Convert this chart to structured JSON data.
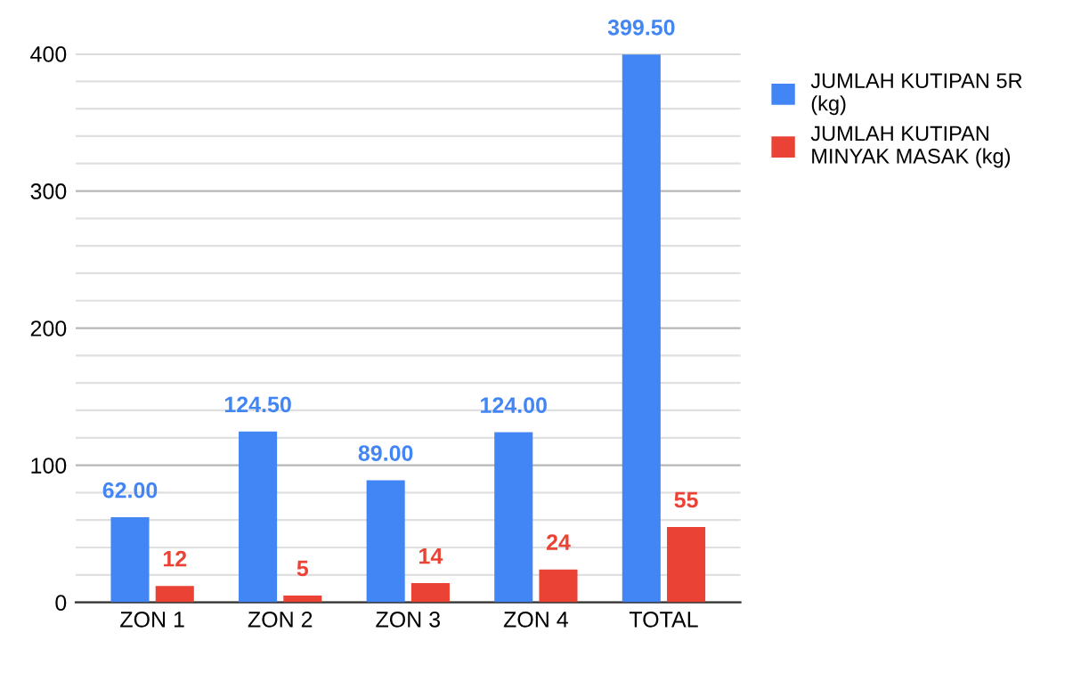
{
  "chart_data": {
    "type": "bar",
    "categories": [
      "ZON 1",
      "ZON 2",
      "ZON 3",
      "ZON 4",
      "TOTAL"
    ],
    "series": [
      {
        "name": "JUMLAH KUTIPAN 5R (kg)",
        "color": "#4285f4",
        "values": [
          62.0,
          124.5,
          89.0,
          124.0,
          399.5
        ],
        "value_labels": [
          "62.00",
          "124.50",
          "89.00",
          "124.00",
          "399.50"
        ]
      },
      {
        "name": "JUMLAH KUTIPAN MINYAK MASAK (kg)",
        "color": "#ea4335",
        "values": [
          12,
          5,
          14,
          24,
          55
        ],
        "value_labels": [
          "12",
          "5",
          "14",
          "24",
          "55"
        ]
      }
    ],
    "ylim": [
      0,
      400
    ],
    "yticks": [
      0,
      {
        "value": 20,
        "label": null
      },
      {
        "value": 40,
        "label": null
      },
      {
        "value": 60,
        "label": null
      },
      {
        "value": 80,
        "label": null
      },
      100,
      {
        "value": 120,
        "label": null
      },
      {
        "value": 140,
        "label": null
      },
      {
        "value": 160,
        "label": null
      },
      {
        "value": 180,
        "label": null
      },
      200,
      {
        "value": 220,
        "label": null
      },
      {
        "value": 240,
        "label": null
      },
      {
        "value": 260,
        "label": null
      },
      {
        "value": 280,
        "label": null
      },
      300,
      {
        "value": 320,
        "label": null
      },
      {
        "value": 340,
        "label": null
      },
      {
        "value": 360,
        "label": null
      },
      {
        "value": 380,
        "label": null
      },
      400
    ],
    "grid": "y",
    "legend": "top right"
  }
}
